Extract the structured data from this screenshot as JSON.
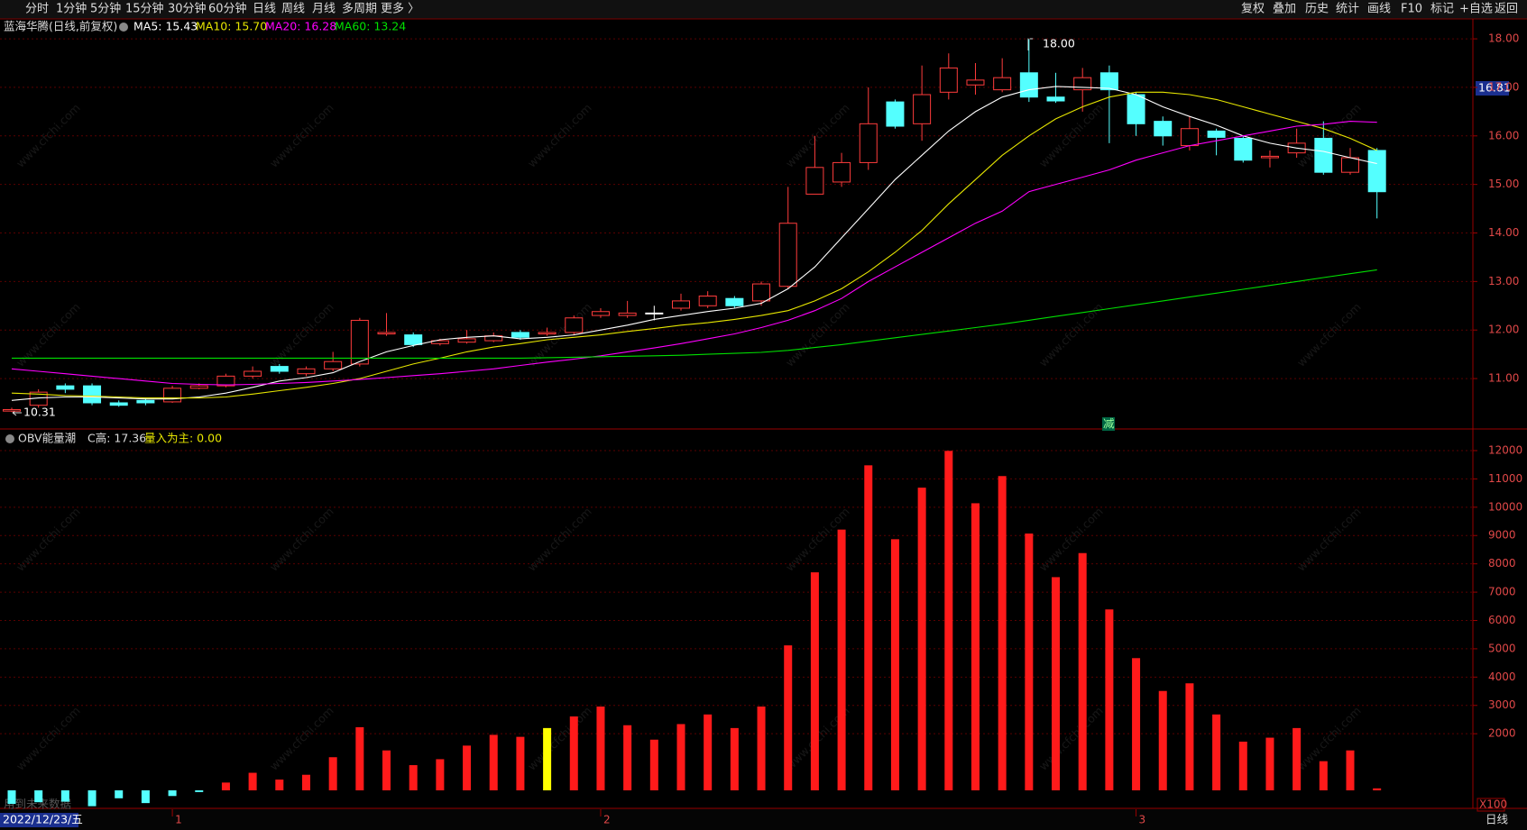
{
  "toolbar": {
    "left": [
      "分时",
      "1分钟",
      "5分钟",
      "15分钟",
      "30分钟",
      "60分钟",
      "日线",
      "周线",
      "月线",
      "多周期",
      "更多 〉"
    ],
    "active": "日线",
    "right": [
      "复权",
      "叠加",
      "历史",
      "统计",
      "画线",
      "F10",
      "标记",
      "+自选",
      "返回"
    ]
  },
  "chart_data": [
    {
      "type": "candlestick",
      "title": "蓝海华腾(日线,前复权)",
      "open": [
        10.33,
        10.45,
        10.85,
        10.85,
        10.5,
        10.55,
        10.52,
        10.8,
        10.85,
        11.05,
        11.25,
        11.1,
        11.2,
        11.3,
        11.92,
        11.9,
        11.72,
        11.75,
        11.78,
        11.95,
        11.92,
        11.95,
        12.3,
        12.3,
        12.35,
        12.45,
        12.5,
        12.65,
        12.6,
        12.9,
        14.8,
        15.05,
        15.45,
        16.7,
        16.25,
        16.9,
        17.05,
        16.95,
        17.3,
        16.8,
        16.95,
        17.3,
        16.85,
        16.3,
        15.8,
        16.1,
        15.95,
        15.55,
        15.65,
        15.95,
        15.25,
        15.7
      ],
      "high": [
        10.4,
        10.78,
        10.9,
        10.9,
        10.55,
        10.6,
        10.85,
        10.9,
        11.1,
        11.25,
        11.3,
        11.25,
        11.55,
        12.25,
        12.35,
        11.95,
        11.82,
        12.0,
        11.95,
        12.0,
        12.05,
        12.3,
        12.45,
        12.6,
        12.5,
        12.75,
        12.8,
        12.7,
        13.0,
        14.95,
        16.0,
        15.65,
        17.0,
        16.75,
        17.45,
        17.7,
        17.5,
        17.6,
        18.0,
        17.3,
        17.4,
        17.45,
        16.9,
        16.4,
        16.4,
        16.15,
        16.0,
        15.7,
        16.15,
        16.3,
        15.75,
        15.75
      ],
      "low": [
        10.31,
        10.4,
        10.7,
        10.45,
        10.42,
        10.45,
        10.5,
        10.78,
        10.82,
        11.0,
        11.1,
        11.05,
        11.15,
        11.25,
        11.88,
        11.65,
        11.68,
        11.72,
        11.75,
        11.8,
        11.88,
        11.9,
        12.25,
        12.25,
        12.2,
        12.4,
        12.45,
        12.45,
        12.5,
        12.85,
        14.8,
        14.95,
        15.3,
        16.15,
        15.9,
        16.75,
        16.85,
        16.9,
        16.7,
        16.68,
        16.5,
        15.85,
        16.0,
        15.8,
        15.7,
        15.6,
        15.45,
        15.35,
        15.55,
        15.2,
        15.2,
        14.3
      ],
      "close": [
        10.36,
        10.72,
        10.78,
        10.5,
        10.45,
        10.5,
        10.8,
        10.85,
        11.05,
        11.15,
        11.15,
        11.2,
        11.35,
        12.2,
        11.95,
        11.7,
        11.78,
        11.82,
        11.88,
        11.85,
        11.95,
        12.25,
        12.38,
        12.35,
        12.35,
        12.6,
        12.7,
        12.5,
        12.95,
        14.2,
        15.35,
        15.45,
        16.25,
        16.2,
        16.85,
        17.4,
        17.15,
        17.2,
        16.8,
        16.72,
        17.2,
        16.95,
        16.25,
        16.0,
        16.15,
        15.97,
        15.5,
        15.58,
        15.85,
        15.25,
        15.55,
        14.85
      ],
      "up_color": "#ff3c3c",
      "down_color": "#54ffff",
      "flat_color": "#ffffff",
      "series": [
        {
          "name": "MA5: 15.43",
          "color": "#ffffff",
          "values": [
            10.55,
            10.6,
            10.62,
            10.62,
            10.6,
            10.58,
            10.58,
            10.62,
            10.7,
            10.82,
            10.95,
            11.02,
            11.12,
            11.35,
            11.55,
            11.68,
            11.8,
            11.85,
            11.88,
            11.82,
            11.85,
            11.9,
            12.0,
            12.1,
            12.22,
            12.3,
            12.38,
            12.45,
            12.55,
            12.85,
            13.3,
            13.9,
            14.5,
            15.1,
            15.6,
            16.1,
            16.5,
            16.8,
            16.95,
            17.02,
            17.0,
            16.98,
            16.85,
            16.6,
            16.4,
            16.22,
            16.0,
            15.85,
            15.75,
            15.68,
            15.55,
            15.43
          ]
        },
        {
          "name": "MA10: 15.70",
          "color": "#e6e600",
          "values": [
            10.7,
            10.68,
            10.65,
            10.64,
            10.62,
            10.6,
            10.6,
            10.6,
            10.62,
            10.68,
            10.75,
            10.82,
            10.9,
            11.0,
            11.15,
            11.3,
            11.42,
            11.55,
            11.65,
            11.72,
            11.8,
            11.85,
            11.9,
            11.97,
            12.03,
            12.1,
            12.15,
            12.22,
            12.3,
            12.4,
            12.6,
            12.85,
            13.2,
            13.6,
            14.05,
            14.6,
            15.1,
            15.6,
            16.0,
            16.35,
            16.6,
            16.8,
            16.9,
            16.9,
            16.85,
            16.75,
            16.6,
            16.45,
            16.3,
            16.15,
            15.95,
            15.7
          ]
        },
        {
          "name": "MA20: 16.28",
          "color": "#ff00ff",
          "values": [
            11.2,
            11.15,
            11.1,
            11.05,
            11.0,
            10.95,
            10.9,
            10.88,
            10.87,
            10.88,
            10.9,
            10.92,
            10.95,
            10.98,
            11.02,
            11.06,
            11.1,
            11.15,
            11.2,
            11.27,
            11.34,
            11.4,
            11.47,
            11.55,
            11.63,
            11.72,
            11.82,
            11.92,
            12.05,
            12.2,
            12.4,
            12.65,
            13.0,
            13.3,
            13.6,
            13.9,
            14.2,
            14.45,
            14.85,
            15.0,
            15.15,
            15.3,
            15.5,
            15.65,
            15.8,
            15.9,
            16.0,
            16.1,
            16.2,
            16.24,
            16.3,
            16.28
          ]
        },
        {
          "name": "MA60: 13.24",
          "color": "#00e000",
          "values": [
            11.42,
            11.42,
            11.42,
            11.42,
            11.42,
            11.42,
            11.42,
            11.42,
            11.42,
            11.42,
            11.42,
            11.42,
            11.42,
            11.42,
            11.42,
            11.42,
            11.42,
            11.42,
            11.42,
            11.42,
            11.43,
            11.44,
            11.45,
            11.46,
            11.47,
            11.48,
            11.5,
            11.52,
            11.54,
            11.58,
            11.64,
            11.7,
            11.77,
            11.84,
            11.91,
            11.98,
            12.05,
            12.12,
            12.2,
            12.28,
            12.36,
            12.44,
            12.52,
            12.6,
            12.68,
            12.76,
            12.84,
            12.92,
            13.0,
            13.08,
            13.16,
            13.24
          ]
        }
      ],
      "ylim": [
        9.98,
        18.41
      ],
      "yticks": [
        {
          "value": 11,
          "label": "11.00"
        },
        {
          "value": 12,
          "label": "12.00"
        },
        {
          "value": 13,
          "label": "13.00"
        },
        {
          "value": 14,
          "label": "14.00"
        },
        {
          "value": 15,
          "label": "15.00"
        },
        {
          "value": 16,
          "label": "16.00"
        },
        {
          "value": 17,
          "label": "17.00"
        },
        {
          "value": 18,
          "label": "18.00"
        }
      ],
      "grid": true,
      "cursor_label": "16.81",
      "high_label": "18.00",
      "low_label": "10.31",
      "signal": "减",
      "watermark": "www.cfchi.com"
    },
    {
      "type": "bar",
      "title": "OBV能量潮",
      "stats": [
        "C高: 17.36",
        "量入为主: 0.00"
      ],
      "categories": [
        null,
        null,
        null,
        null,
        null,
        null,
        "1",
        null,
        null,
        null,
        null,
        null,
        null,
        null,
        null,
        null,
        null,
        null,
        null,
        null,
        null,
        null,
        "2",
        null,
        null,
        null,
        null,
        null,
        null,
        null,
        null,
        null,
        null,
        null,
        null,
        null,
        null,
        null,
        null,
        null,
        null,
        null,
        "3",
        null,
        null,
        null,
        null,
        null,
        null,
        null,
        null,
        null
      ],
      "values": [
        -480,
        -420,
        -400,
        -560,
        -280,
        -450,
        -200,
        -60,
        275,
        620,
        380,
        550,
        1170,
        2230,
        1410,
        890,
        1100,
        1580,
        1960,
        1890,
        2200,
        2610,
        2960,
        2300,
        1790,
        2340,
        2680,
        2200,
        2960,
        5120,
        7700,
        9210,
        11480,
        8870,
        10690,
        11990,
        10140,
        11100,
        9070,
        7530,
        8380,
        6390,
        4670,
        3510,
        3780,
        2680,
        1720,
        1860,
        2200,
        1030,
        1410,
        70
      ],
      "colors": [
        "#54ffff",
        "#54ffff",
        "#54ffff",
        "#54ffff",
        "#54ffff",
        "#54ffff",
        "#54ffff",
        "#54ffff",
        "#ff1a1a",
        "#ff1a1a",
        "#ff1a1a",
        "#ff1a1a",
        "#ff1a1a",
        "#ff1a1a",
        "#ff1a1a",
        "#ff1a1a",
        "#ff1a1a",
        "#ff1a1a",
        "#ff1a1a",
        "#ff1a1a",
        "#ffff00",
        "#ff1a1a",
        "#ff1a1a",
        "#ff1a1a",
        "#ff1a1a",
        "#ff1a1a",
        "#ff1a1a",
        "#ff1a1a",
        "#ff1a1a",
        "#ff1a1a",
        "#ff1a1a",
        "#ff1a1a",
        "#ff1a1a",
        "#ff1a1a",
        "#ff1a1a",
        "#ff1a1a",
        "#ff1a1a",
        "#ff1a1a",
        "#ff1a1a",
        "#ff1a1a",
        "#ff1a1a",
        "#ff1a1a",
        "#ff1a1a",
        "#ff1a1a",
        "#ff1a1a",
        "#ff1a1a",
        "#ff1a1a",
        "#ff1a1a",
        "#ff1a1a",
        "#ff1a1a",
        "#ff1a1a",
        "#ff1a1a"
      ],
      "ylim": [
        -605,
        12732
      ],
      "yticks": [
        2000,
        3000,
        4000,
        5000,
        6000,
        7000,
        8000,
        9000,
        10000,
        11000,
        12000
      ],
      "grid": true,
      "unit_label": "X100",
      "note": "用到未来数据",
      "cursor_date": "2022/12/23/五",
      "period_label": "日线"
    }
  ]
}
